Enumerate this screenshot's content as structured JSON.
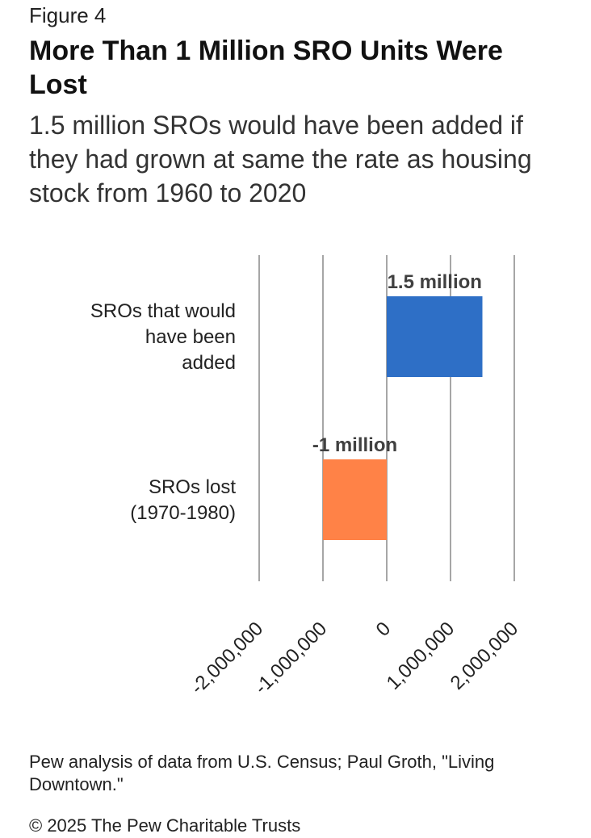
{
  "figure_label": "Figure 4",
  "title": "More Than 1 Million SRO Units Were Lost",
  "subtitle": "1.5 million SROs would have been added if they had grown at same the rate as housing stock from 1960 to 2020",
  "source": "Pew analysis of data from U.S. Census; Paul Groth, \"Living Downtown.\"",
  "copyright": "© 2025 The Pew Charitable Trusts",
  "chart_data": {
    "type": "bar",
    "orientation": "horizontal",
    "categories": [
      [
        "SROs that would",
        "have been",
        "added"
      ],
      [
        "SROs lost",
        "(1970-1980)"
      ]
    ],
    "values": [
      1500000,
      -1000000
    ],
    "data_labels": [
      "1.5 million",
      "-1 million"
    ],
    "colors": [
      "#2e6fc6",
      "#ff8247"
    ],
    "xlim": [
      -2000000,
      2000000
    ],
    "xticks": [
      -2000000,
      -1000000,
      0,
      1000000,
      2000000
    ],
    "xtick_labels": [
      "-2,000,000",
      "-1,000,000",
      "0",
      "1,000,000",
      "2,000,000"
    ],
    "grid": "vertical",
    "gridline_color": "#a6a6a6",
    "label_color": "#404040"
  }
}
